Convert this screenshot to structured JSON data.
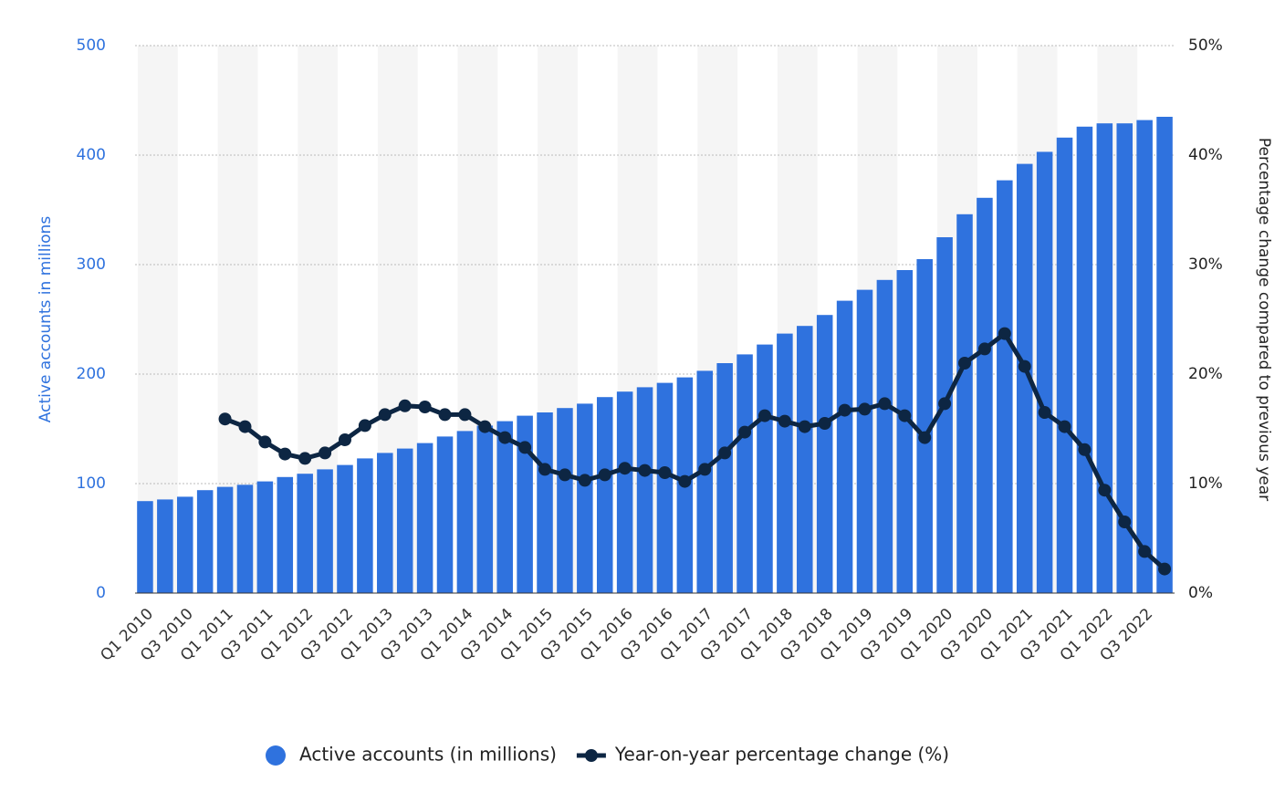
{
  "chart_data": {
    "type": "bar",
    "categories": [
      "Q1 2010",
      null,
      "Q3 2010",
      null,
      "Q1 2011",
      null,
      "Q3 2011",
      null,
      "Q1 2012",
      null,
      "Q3 2012",
      null,
      "Q1 2013",
      null,
      "Q3 2013",
      null,
      "Q1 2014",
      null,
      "Q3 2014",
      null,
      "Q1 2015",
      null,
      "Q3 2015",
      null,
      "Q1 2016",
      null,
      "Q3 2016",
      null,
      "Q1 2017",
      null,
      "Q3 2017",
      null,
      "Q1 2018",
      null,
      "Q3 2018",
      null,
      "Q1 2019",
      null,
      "Q3 2019",
      null,
      "Q1 2020",
      null,
      "Q3 2020",
      null,
      "Q1 2021",
      null,
      "Q3 2021",
      null,
      "Q1 2022",
      null,
      "Q3 2022",
      null
    ],
    "series": [
      {
        "name": "Active accounts (in millions)",
        "color": "#2f72de",
        "type": "bar",
        "values": [
          84,
          85.5,
          88,
          94,
          97,
          98.9,
          102,
          106,
          109,
          113,
          117,
          123,
          128,
          132,
          137,
          143,
          148,
          153,
          157,
          162,
          165,
          169,
          173,
          179,
          184,
          188,
          192,
          197,
          203,
          210,
          218,
          227,
          237,
          244,
          254,
          267,
          277,
          286,
          295,
          305,
          325,
          346,
          361,
          377,
          392,
          403,
          416,
          426,
          429,
          429,
          432,
          435
        ]
      },
      {
        "name": "Year-on-year percentage change (%)",
        "color": "#0d2643",
        "type": "line",
        "axis": "y2",
        "values": [
          null,
          null,
          null,
          null,
          15.9,
          15.2,
          13.8,
          12.7,
          12.3,
          12.8,
          14.0,
          15.3,
          16.3,
          17.1,
          17.0,
          16.3,
          16.3,
          15.2,
          14.2,
          13.3,
          11.3,
          10.8,
          10.3,
          10.8,
          11.4,
          11.2,
          11.0,
          10.2,
          11.3,
          12.8,
          14.7,
          16.2,
          15.7,
          15.2,
          15.5,
          16.7,
          16.8,
          17.3,
          16.2,
          14.2,
          17.3,
          21.0,
          22.3,
          23.7,
          20.7,
          16.5,
          15.2,
          13.1,
          9.4,
          6.5,
          3.8,
          2.2
        ]
      }
    ],
    "ylabel": "Active accounts in millions",
    "y2label": "Percentage change compared to previous year",
    "ylim": [
      0,
      500
    ],
    "yticks": [
      0,
      100,
      200,
      300,
      400,
      500
    ],
    "y2lim": [
      0,
      50
    ],
    "y2ticks": [
      {
        "value": 0,
        "label": "0%"
      },
      {
        "value": 10,
        "label": "10%"
      },
      {
        "value": 20,
        "label": "20%"
      },
      {
        "value": 30,
        "label": "30%"
      },
      {
        "value": 40,
        "label": "40%"
      },
      {
        "value": 50,
        "label": "50%"
      }
    ],
    "grid": true,
    "legend": "bottom"
  }
}
